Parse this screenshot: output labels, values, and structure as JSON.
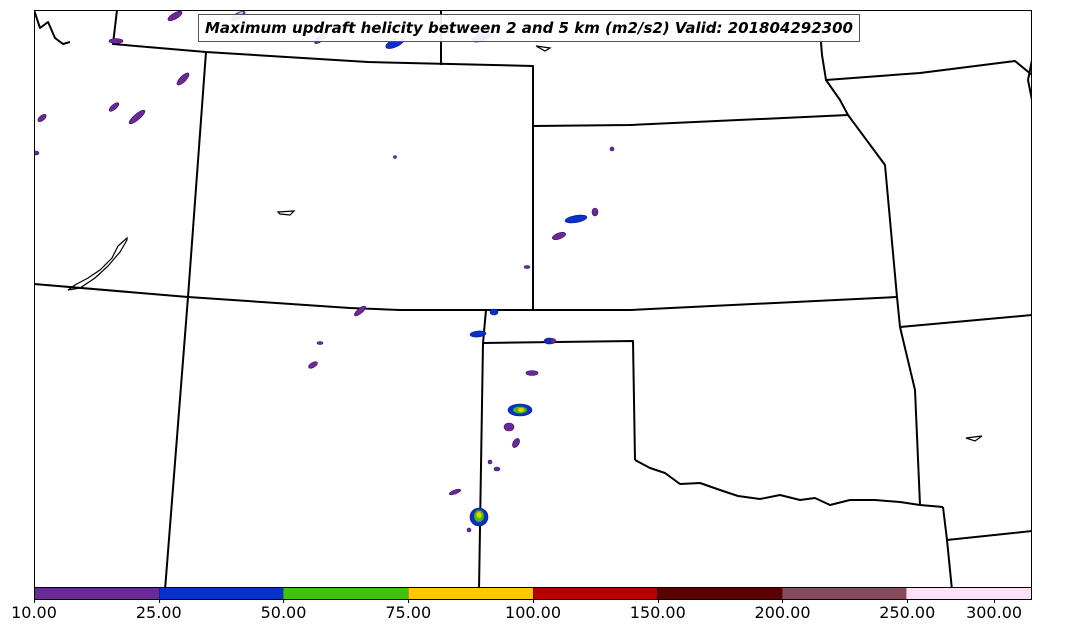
{
  "title": "Maximum updraft helicity between 2 and 5 km (m2/s2) Valid: 201804292300",
  "colorbar": {
    "ticks": [
      "10.00",
      "25.00",
      "50.00",
      "75.00",
      "100.00",
      "150.00",
      "200.00",
      "250.00",
      "300.00"
    ],
    "colors": [
      "#6a2a96",
      "#0a2fcf",
      "#41c30e",
      "#ffc800",
      "#b60000",
      "#5a0000",
      "#8a4a5e",
      "#ffe0f6"
    ]
  },
  "palette": {
    "ocean_background": "#ffffff",
    "boundary_line": "#000000"
  }
}
